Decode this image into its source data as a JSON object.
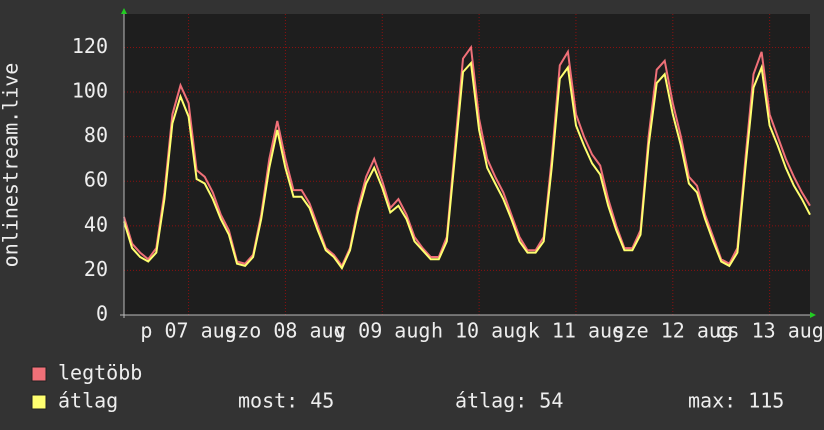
{
  "chart_data": {
    "type": "line",
    "y_label": "onlinestream.live",
    "x": [
      -4,
      -2,
      0,
      2,
      4,
      6,
      8,
      10,
      12,
      14,
      16,
      18,
      20,
      22,
      24,
      26,
      28,
      30,
      32,
      34,
      36,
      38,
      40,
      42,
      44,
      46,
      48,
      50,
      52,
      54,
      56,
      58,
      60,
      62,
      64,
      66,
      68,
      70,
      72,
      74,
      76,
      78,
      80,
      82,
      84,
      86,
      88,
      90,
      92,
      94,
      96,
      98,
      100,
      102,
      104,
      106,
      108,
      110,
      112,
      114,
      116,
      118,
      120,
      122,
      124,
      126,
      128,
      130,
      132,
      134,
      136,
      138,
      140,
      142,
      144,
      146,
      148,
      150,
      152,
      154,
      156,
      158,
      160,
      162,
      164,
      166
    ],
    "series": [
      {
        "name": "legtöbb",
        "color": "#f07078",
        "values": [
          44,
          32,
          28,
          25,
          30,
          55,
          90,
          103,
          95,
          65,
          62,
          55,
          45,
          38,
          24,
          23,
          27,
          45,
          70,
          87,
          70,
          56,
          56,
          50,
          40,
          30,
          27,
          22,
          30,
          48,
          62,
          70,
          60,
          48,
          52,
          45,
          35,
          30,
          26,
          26,
          35,
          75,
          115,
          120,
          88,
          70,
          62,
          55,
          45,
          35,
          29,
          29,
          35,
          70,
          112,
          118,
          90,
          80,
          72,
          67,
          52,
          40,
          30,
          30,
          38,
          80,
          110,
          114,
          95,
          80,
          62,
          58,
          45,
          35,
          25,
          23,
          30,
          70,
          108,
          118,
          90,
          80,
          70,
          62,
          55,
          49
        ]
      },
      {
        "name": "átlag",
        "color": "#ffff70",
        "values": [
          42,
          30,
          26,
          24,
          28,
          52,
          86,
          98,
          89,
          61,
          59,
          52,
          43,
          36,
          23,
          22,
          26,
          43,
          66,
          83,
          66,
          53,
          53,
          48,
          38,
          29,
          26,
          21,
          29,
          46,
          59,
          66,
          57,
          46,
          49,
          43,
          33,
          29,
          25,
          25,
          33,
          71,
          109,
          113,
          83,
          66,
          59,
          52,
          43,
          33,
          28,
          28,
          33,
          66,
          106,
          111,
          85,
          76,
          68,
          63,
          49,
          38,
          29,
          29,
          36,
          76,
          104,
          108,
          90,
          76,
          59,
          55,
          43,
          33,
          24,
          22,
          28,
          66,
          102,
          111,
          85,
          76,
          66,
          58,
          52,
          45
        ]
      }
    ],
    "legend_stats": [
      "most: 45",
      "átlag: 54",
      "max: 115"
    ],
    "xlim": [
      -4,
      166
    ],
    "xticks": [
      {
        "value": 12,
        "label": "p 07 aug"
      },
      {
        "value": 36,
        "label": "szo 08 aug"
      },
      {
        "value": 60,
        "label": "v 09 aug"
      },
      {
        "value": 84,
        "label": "h 10 aug"
      },
      {
        "value": 108,
        "label": "k 11 aug"
      },
      {
        "value": 132,
        "label": "sze 12 aug"
      },
      {
        "value": 156,
        "label": "cs 13 aug"
      }
    ],
    "ylim": [
      0,
      135
    ],
    "yticks": [
      0,
      20,
      40,
      60,
      80,
      100,
      120
    ],
    "grid": true
  }
}
